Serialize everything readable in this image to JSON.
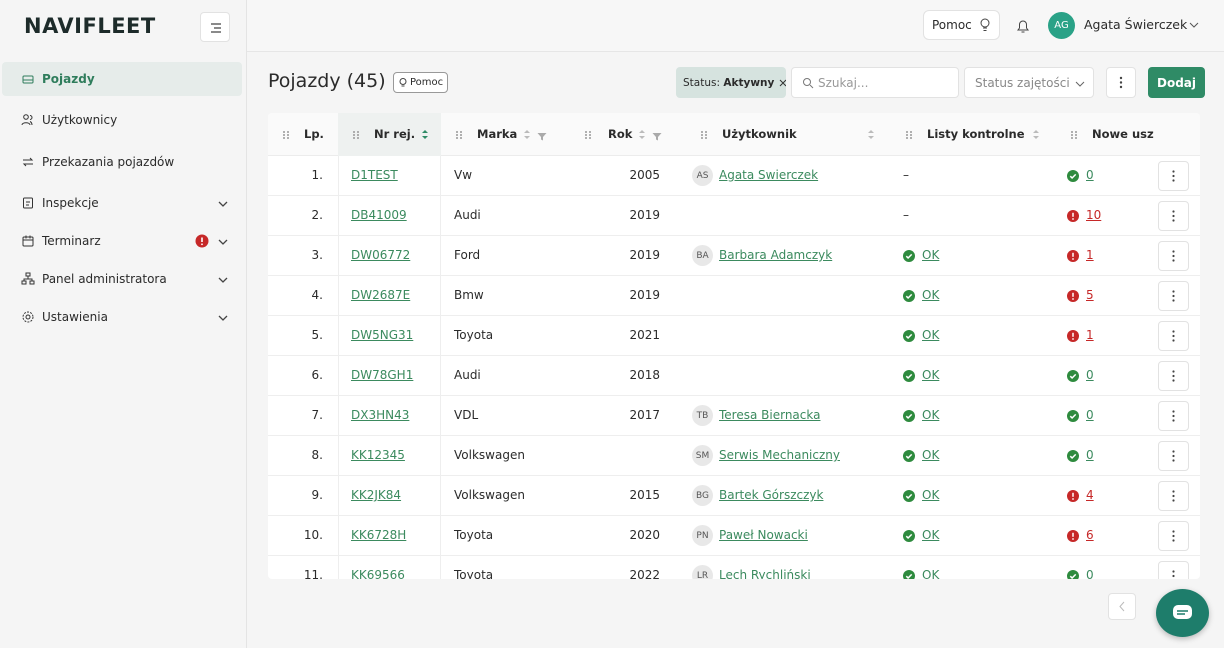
{
  "sidebar": {
    "logo": "NAVIFLEET",
    "menu": [
      {
        "label": "Pojazdy"
      },
      {
        "label": "Użytkownicy"
      },
      {
        "label": "Przekazania pojazdów"
      },
      {
        "label": "Inspekcje"
      },
      {
        "label": "Terminarz"
      },
      {
        "label": "Panel administratora"
      },
      {
        "label": "Ustawienia"
      }
    ]
  },
  "topbar": {
    "help": "Pomoc",
    "user_initials": "AG",
    "user_name": "Agata Świerczek"
  },
  "page": {
    "title": "Pojazdy (45)",
    "help": "Pomoc",
    "filter_label": "Status:",
    "filter_value": "Aktywny",
    "search_placeholder": "Szukaj...",
    "status_select": "Status zajętości",
    "add_button": "Dodaj"
  },
  "table": {
    "columns": [
      "Lp.",
      "Nr rej.",
      "Marka",
      "Rok",
      "Użytkownik",
      "Listy kontrolne",
      "Nowe usz"
    ],
    "rows": [
      {
        "lp": "1.",
        "reg": "D1TEST",
        "make": "Vw",
        "year": 2005,
        "initials": "AS",
        "user": "Agata Swierczek",
        "checklist": "–",
        "damages": 0
      },
      {
        "lp": "2.",
        "reg": "DB41009",
        "make": "Audi",
        "year": 2019,
        "checklist": "–",
        "damages": 10
      },
      {
        "lp": "3.",
        "reg": "DW06772",
        "make": "Ford",
        "year": 2019,
        "initials": "BA",
        "user": "Barbara Adamczyk",
        "checklist": "OK",
        "damages": 1
      },
      {
        "lp": "4.",
        "reg": "DW2687E",
        "make": "Bmw",
        "year": 2019,
        "checklist": "OK",
        "damages": 5
      },
      {
        "lp": "5.",
        "reg": "DW5NG31",
        "make": "Toyota",
        "year": 2021,
        "checklist": "OK",
        "damages": 1
      },
      {
        "lp": "6.",
        "reg": "DW78GH1",
        "make": "Audi",
        "year": 2018,
        "checklist": "OK",
        "damages": 0
      },
      {
        "lp": "7.",
        "reg": "DX3HN43",
        "make": "VDL",
        "year": 2017,
        "initials": "TB",
        "user": "Teresa Biernacka",
        "checklist": "OK",
        "damages": 0
      },
      {
        "lp": "8.",
        "reg": "KK12345",
        "make": "Volkswagen",
        "initials": "SM",
        "user": "Serwis Mechaniczny",
        "checklist": "OK",
        "damages": 0
      },
      {
        "lp": "9.",
        "reg": "KK2JK84",
        "make": "Volkswagen",
        "year": 2015,
        "initials": "BG",
        "user": "Bartek Górszczyk",
        "checklist": "OK",
        "damages": 4
      },
      {
        "lp": "10.",
        "reg": "KK6728H",
        "make": "Toyota",
        "year": 2020,
        "initials": "PN",
        "user": "Paweł Nowacki",
        "checklist": "OK",
        "damages": 6
      },
      {
        "lp": "11.",
        "reg": "KK69566",
        "make": "Toyota",
        "year": 2022,
        "initials": "LR",
        "user": "Lech Rychliński",
        "checklist": "OK",
        "damages": 0
      }
    ]
  }
}
